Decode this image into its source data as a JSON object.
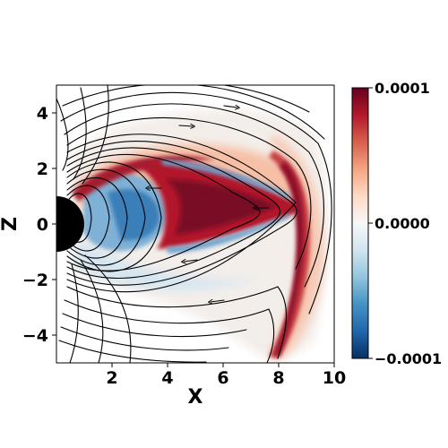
{
  "chart_data": {
    "type": "heatmap",
    "title": "",
    "xlabel": "X",
    "ylabel": "Z",
    "xlim": [
      0,
      10
    ],
    "ylim": [
      -5,
      5
    ],
    "x_ticks": [
      {
        "value": 2,
        "label": "2"
      },
      {
        "value": 4,
        "label": "4"
      },
      {
        "value": 6,
        "label": "6"
      },
      {
        "value": 8,
        "label": "8"
      },
      {
        "value": 10,
        "label": "10"
      }
    ],
    "y_ticks": [
      {
        "value": 4,
        "label": "4"
      },
      {
        "value": 2,
        "label": "2"
      },
      {
        "value": 0,
        "label": "0"
      },
      {
        "value": -2,
        "label": "−2"
      },
      {
        "value": -4,
        "label": "−4"
      }
    ],
    "colorbar": {
      "colormap": "RdBu_r",
      "range": [
        -0.0001,
        0.0001
      ],
      "ticks": [
        {
          "value": 0.0001,
          "label": "0.0001"
        },
        {
          "value": 0.0,
          "label": "0.0000"
        },
        {
          "value": -0.0001,
          "label": "−0.0001"
        }
      ],
      "colors": [
        "#053061",
        "#2166ac",
        "#4393c3",
        "#92c5de",
        "#d1e5f0",
        "#f7f7f7",
        "#fddbc7",
        "#f4a582",
        "#d6604d",
        "#b2182b",
        "#67001f"
      ]
    },
    "planet": {
      "center": [
        0,
        0
      ],
      "radius": 1,
      "color": "#000000"
    },
    "overlay": "streamlines"
  }
}
